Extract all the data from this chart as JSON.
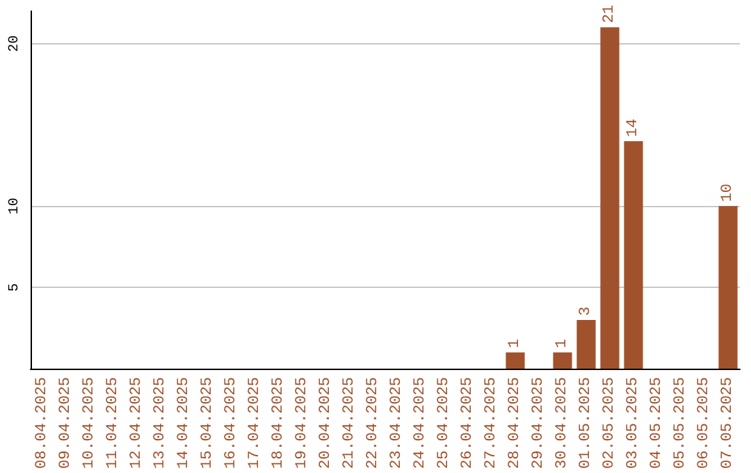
{
  "chart_data": {
    "type": "bar",
    "categories": [
      "08.04.2025",
      "09.04.2025",
      "10.04.2025",
      "11.04.2025",
      "12.04.2025",
      "13.04.2025",
      "14.04.2025",
      "15.04.2025",
      "16.04.2025",
      "17.04.2025",
      "18.04.2025",
      "19.04.2025",
      "20.04.2025",
      "21.04.2025",
      "22.04.2025",
      "23.04.2025",
      "24.04.2025",
      "25.04.2025",
      "26.04.2025",
      "27.04.2025",
      "28.04.2025",
      "29.04.2025",
      "30.04.2025",
      "01.05.2025",
      "02.05.2025",
      "03.05.2025",
      "04.05.2025",
      "05.05.2025",
      "06.05.2025",
      "07.05.2025"
    ],
    "values": [
      0,
      0,
      0,
      0,
      0,
      0,
      0,
      0,
      0,
      0,
      0,
      0,
      0,
      0,
      0,
      0,
      0,
      0,
      0,
      0,
      1,
      0,
      1,
      3,
      21,
      14,
      0,
      0,
      0,
      10
    ],
    "value_labels": [
      null,
      null,
      null,
      null,
      null,
      null,
      null,
      null,
      null,
      null,
      null,
      null,
      null,
      null,
      null,
      null,
      null,
      null,
      null,
      null,
      "1",
      null,
      "1",
      "3",
      "21",
      "14",
      null,
      null,
      null,
      "10"
    ],
    "color": "#a0522d",
    "ylim": [
      0,
      22
    ],
    "yticks": [
      5,
      10,
      20
    ],
    "grid": "y"
  }
}
